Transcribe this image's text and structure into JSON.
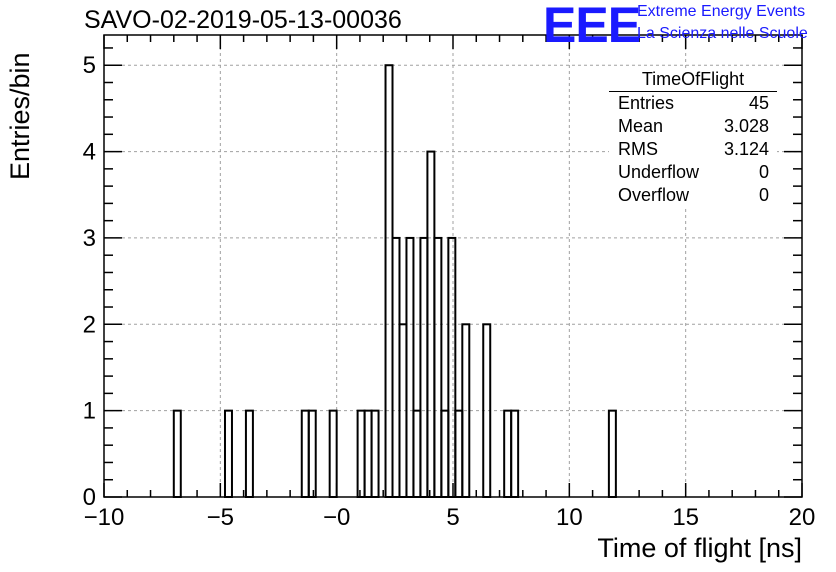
{
  "title": "SAVO-02-2019-05-13-00036",
  "logo": {
    "mark": "EEE",
    "line1": "Extreme Energy Events",
    "line2": "La Scienza nelle Scuole",
    "color": "#1a1aff"
  },
  "stats_box": {
    "title": "TimeOfFlight",
    "rows": [
      {
        "label": "Entries",
        "value": "45"
      },
      {
        "label": "Mean",
        "value": "3.028"
      },
      {
        "label": "RMS",
        "value": "3.124"
      },
      {
        "label": "Underflow",
        "value": "0"
      },
      {
        "label": "Overflow",
        "value": "0"
      }
    ]
  },
  "chart_data": {
    "type": "bar",
    "title": "SAVO-02-2019-05-13-00036",
    "xlabel": "Time of flight [ns]",
    "ylabel": "Entries/bin",
    "xlim": [
      -10,
      20
    ],
    "ylim": [
      0,
      5.35
    ],
    "bin_width": 0.3,
    "xticks": [
      -10,
      -5,
      0,
      5,
      10,
      15,
      20
    ],
    "xtick_labels": [
      "−10",
      "−5",
      "−0",
      "5",
      "10",
      "15",
      "20"
    ],
    "yticks": [
      0,
      1,
      2,
      3,
      4,
      5
    ],
    "ytick_labels": [
      "0",
      "1",
      "2",
      "3",
      "4",
      "5"
    ],
    "grid": true,
    "bins": [
      {
        "x": -7.0,
        "count": 1
      },
      {
        "x": -4.8,
        "count": 1
      },
      {
        "x": -3.9,
        "count": 1
      },
      {
        "x": -1.5,
        "count": 1
      },
      {
        "x": -1.2,
        "count": 1
      },
      {
        "x": -0.3,
        "count": 1
      },
      {
        "x": 0.9,
        "count": 1
      },
      {
        "x": 1.2,
        "count": 1
      },
      {
        "x": 1.5,
        "count": 1
      },
      {
        "x": 2.1,
        "count": 5
      },
      {
        "x": 2.4,
        "count": 3
      },
      {
        "x": 2.7,
        "count": 2
      },
      {
        "x": 3.0,
        "count": 3
      },
      {
        "x": 3.3,
        "count": 1
      },
      {
        "x": 3.6,
        "count": 3
      },
      {
        "x": 3.9,
        "count": 4
      },
      {
        "x": 4.2,
        "count": 3
      },
      {
        "x": 4.5,
        "count": 1
      },
      {
        "x": 4.8,
        "count": 3
      },
      {
        "x": 5.1,
        "count": 1
      },
      {
        "x": 5.4,
        "count": 2
      },
      {
        "x": 6.3,
        "count": 2
      },
      {
        "x": 7.2,
        "count": 1
      },
      {
        "x": 7.5,
        "count": 1
      },
      {
        "x": 11.7,
        "count": 1
      }
    ],
    "line_color": "#000000",
    "grid_color": "#a0a0a0"
  }
}
